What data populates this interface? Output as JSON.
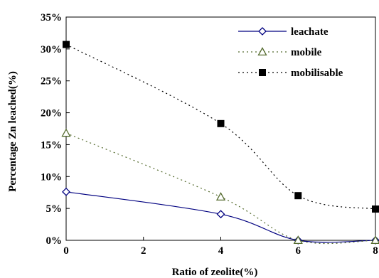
{
  "chart_data": {
    "type": "line",
    "title": "",
    "xlabel": "Ratio of zeolite(%)",
    "ylabel": "Percentage Zn leached(%)",
    "xlim": [
      0,
      8
    ],
    "ylim": [
      0,
      35
    ],
    "x_ticks": [
      0,
      2,
      4,
      6,
      8
    ],
    "x_tick_labels": [
      "0",
      "2",
      "4",
      "6",
      "8"
    ],
    "y_ticks": [
      0,
      5,
      10,
      15,
      20,
      25,
      30,
      35
    ],
    "y_tick_labels": [
      "0%",
      "5%",
      "10%",
      "15%",
      "20%",
      "25%",
      "30%",
      "35%"
    ],
    "grid": false,
    "legend_position": "top-right",
    "x": [
      0,
      4,
      6,
      8
    ],
    "series": [
      {
        "name": "leachate",
        "values": [
          7.6,
          4.1,
          0.0,
          0.0
        ],
        "color": "#000080",
        "line_style": "solid",
        "marker": "diamond-open"
      },
      {
        "name": "mobile",
        "values": [
          16.8,
          6.8,
          0.0,
          0.0
        ],
        "color": "#556b2f",
        "line_style": "dotted",
        "marker": "triangle-open"
      },
      {
        "name": "mobilisable",
        "values": [
          30.7,
          18.3,
          7.0,
          4.9
        ],
        "color": "#000000",
        "line_style": "dotted",
        "marker": "square-filled"
      }
    ]
  }
}
